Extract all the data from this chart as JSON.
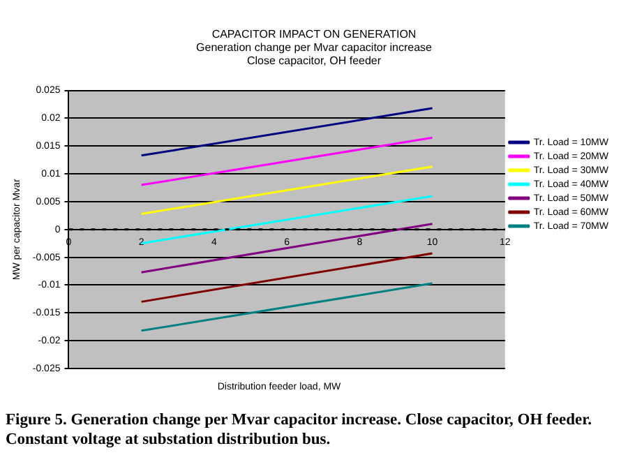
{
  "chart_data": {
    "type": "line",
    "title": "CAPACITOR IMPACT ON GENERATION",
    "subtitle": "Generation change per Mvar capacitor increase\nClose capacitor, OH feeder",
    "xlabel": "Distribution feeder load, MW",
    "ylabel": "MW per capacitor Mvar",
    "x": [
      2,
      10
    ],
    "series": [
      {
        "name": "Tr. Load = 10MW",
        "color": "#000080",
        "values": [
          0.0133,
          0.0218
        ]
      },
      {
        "name": "Tr. Load = 20MW",
        "color": "#ff00ff",
        "values": [
          0.008,
          0.0165
        ]
      },
      {
        "name": "Tr. Load = 30MW",
        "color": "#ffff00",
        "values": [
          0.0028,
          0.0113
        ]
      },
      {
        "name": "Tr. Load = 40MW",
        "color": "#00ffff",
        "values": [
          -0.0025,
          0.006
        ]
      },
      {
        "name": "Tr. Load = 50MW",
        "color": "#800080",
        "values": [
          -0.0077,
          0.001
        ]
      },
      {
        "name": "Tr. Load = 60MW",
        "color": "#800000",
        "values": [
          -0.013,
          -0.0043
        ]
      },
      {
        "name": "Tr. Load = 70MW",
        "color": "#008080",
        "values": [
          -0.0182,
          -0.0097
        ]
      }
    ],
    "xlim": [
      0,
      12
    ],
    "xticks": [
      0,
      2,
      4,
      6,
      8,
      10,
      12
    ],
    "ylim": [
      -0.025,
      0.025
    ],
    "yticks": [
      -0.025,
      -0.02,
      -0.015,
      -0.01,
      -0.005,
      0,
      0.005,
      0.01,
      0.015,
      0.02,
      0.025
    ],
    "ref_lines": [
      {
        "axis": "y",
        "value": 0,
        "color": "#000000",
        "line_style": "dotted"
      }
    ],
    "grid": "y",
    "legend": "right",
    "marker": "none",
    "line_style": "solid",
    "annotations": [
      "Figure 5. Generation change per Mvar capacitor increase.  Close capacitor, OH feeder. Constant voltage at substation distribution bus."
    ]
  }
}
